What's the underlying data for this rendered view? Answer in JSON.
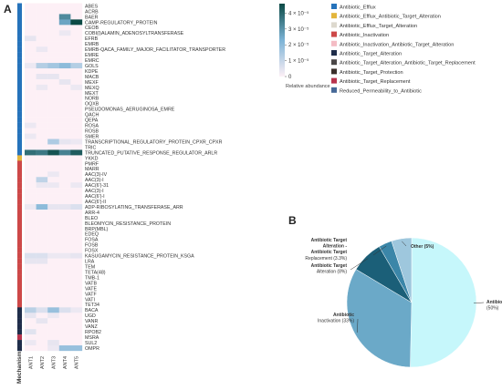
{
  "panel_a_letter": "A",
  "panel_b_letter": "B",
  "mechanism_axis_label": "Mechanism",
  "colorbar": {
    "title": "Relative abundance",
    "ticks": [
      {
        "v": 0,
        "label": "0"
      },
      {
        "v": 1e-05,
        "label": "1 × 10⁻⁵"
      },
      {
        "v": 2e-05,
        "label": "2 × 10⁻⁵"
      },
      {
        "v": 3e-05,
        "label": "3 × 10⁻⁵"
      },
      {
        "v": 4e-05,
        "label": "4 × 10⁻⁵"
      }
    ],
    "range": [
      0,
      4.6e-05
    ],
    "color_low": "#fdf0f6",
    "color_mid": "#7cb3d6",
    "color_high": "#0b4a45"
  },
  "legend": [
    {
      "label": "Antibiotic_Efflux",
      "color": "#2673bb"
    },
    {
      "label": "Antibiotic_Efflux_Antibiotic_Target_Alteration",
      "color": "#e3b53c"
    },
    {
      "label": "Antibiotic_Efflux_Target_Alteration",
      "color": "#ddd9ce"
    },
    {
      "label": "Antibiotic_Inactivation",
      "color": "#cd4848"
    },
    {
      "label": "Antibiotic_Inactivation_Antibiotic_Target_Alteration",
      "color": "#f4bcc4"
    },
    {
      "label": "Antibiotic_Target_Alteration",
      "color": "#1f2d4a"
    },
    {
      "label": "Antibiotic_Target_Alteration_Antibiotic_Target_Replacement",
      "color": "#4a4646"
    },
    {
      "label": "Antibiotic_Target_Protection",
      "color": "#3a2e2a"
    },
    {
      "label": "Antibiotic_Target_Replacement",
      "color": "#b8334c"
    },
    {
      "label": "Reduced_Permeability_to_Antibiotic",
      "color": "#466897"
    }
  ],
  "chart_data": [
    {
      "type": "heatmap",
      "columns": [
        "ANT1",
        "ANT2",
        "ANT3",
        "ANT4",
        "ANT5"
      ],
      "rows": [
        "ABES",
        "ACRB",
        "BAER",
        "CAMP-REGULATORY_PROTEIN",
        "CEOB",
        "COBI(I)ALAMIN_ADENOSYLTRANSFERASE",
        "EFRB",
        "EMRB",
        "EMRB-QACA_FAMILY_MAJOR_FACILITATOR_TRANSPORTER",
        "EMRE",
        "EMRC",
        "GOLS",
        "KDPE",
        "MACB",
        "MEXF",
        "MEXQ",
        "MEXT",
        "NORB",
        "OQXB",
        "PSEUDOMONAS_AERUGINOSA_EMRE",
        "QACH",
        "QEPA",
        "ROSA",
        "ROSB",
        "SMER",
        "TRANSCRIPTIONAL_REGULATORY_PROTEIN_CPXR_CPXR",
        "TRIC",
        "TRUNCATED_PUTATIVE_RESPONSE_REGULATOR_ARLR",
        "YKKD",
        "PMRF",
        "MARR",
        "AAC(3)-IV",
        "AAC(3)-I",
        "AAC(6')-31",
        "AAC(3)-I",
        "AAC(6')-I",
        "AAC(6')-II",
        "ADP-RIBOSYLATING_TRANSFERASE_ARR",
        "ARR-4",
        "BLEO",
        "BLEOMYCIN_RESISTANCE_PROTEIN",
        "BRP(MBL)",
        "EDEQ",
        "FOSA",
        "FOSB",
        "FOSX",
        "KASUGAMYCIN_RESISTANCE_PROTEIN_KSGA",
        "LRA",
        "TEM",
        "TETA(48)",
        "TMB-1",
        "VATB",
        "VATE",
        "VATF",
        "VATI",
        "TET34",
        "BACA",
        "UGD",
        "VANR",
        "VANZ",
        "RPOB2",
        "MSRA",
        "SUL2",
        "OMPR"
      ],
      "row_mechanisms": [
        0,
        0,
        0,
        0,
        0,
        0,
        0,
        0,
        0,
        0,
        0,
        0,
        0,
        0,
        0,
        0,
        0,
        0,
        0,
        0,
        0,
        0,
        0,
        0,
        0,
        0,
        0,
        0,
        1,
        3,
        3,
        3,
        3,
        3,
        3,
        3,
        3,
        3,
        3,
        3,
        3,
        3,
        3,
        3,
        3,
        3,
        3,
        3,
        3,
        3,
        3,
        3,
        3,
        3,
        3,
        3,
        5,
        5,
        5,
        5,
        5,
        8,
        5,
        5
      ],
      "values": [
        [
          0,
          0,
          0,
          0,
          0
        ],
        [
          0,
          0,
          0,
          0,
          0
        ],
        [
          0,
          0,
          0,
          3.2e-05,
          0
        ],
        [
          0,
          0,
          0,
          2.6e-05,
          4.6e-05
        ],
        [
          0,
          0,
          0,
          0,
          0
        ],
        [
          0,
          0,
          0,
          3e-06,
          0
        ],
        [
          4e-06,
          0,
          0,
          0,
          0
        ],
        [
          0,
          0,
          0,
          0,
          0
        ],
        [
          0,
          3e-06,
          0,
          0,
          0
        ],
        [
          0,
          0,
          0,
          0,
          0
        ],
        [
          0,
          0,
          0,
          0,
          0
        ],
        [
          3e-06,
          1.3e-05,
          1.6e-05,
          2e-05,
          1.3e-05
        ],
        [
          0,
          0,
          0,
          0,
          0
        ],
        [
          0,
          4e-06,
          4e-06,
          0,
          0
        ],
        [
          0,
          0,
          0,
          4e-06,
          0
        ],
        [
          0,
          3e-06,
          0,
          0,
          3e-06
        ],
        [
          0,
          0,
          0,
          0,
          0
        ],
        [
          0,
          0,
          0,
          0,
          0
        ],
        [
          0,
          0,
          0,
          0,
          0
        ],
        [
          0,
          0,
          0,
          0,
          0
        ],
        [
          0,
          0,
          0,
          0,
          0
        ],
        [
          0,
          0,
          0,
          0,
          0
        ],
        [
          3e-06,
          0,
          0,
          0,
          0
        ],
        [
          0,
          0,
          0,
          0,
          0
        ],
        [
          3e-06,
          0,
          0,
          0,
          0
        ],
        [
          0,
          0,
          1.4e-05,
          4e-06,
          3e-06
        ],
        [
          0,
          0,
          0,
          0,
          0
        ],
        [
          3.8e-05,
          3.6e-05,
          4.4e-05,
          3.4e-05,
          4.2e-05
        ],
        [
          0,
          0,
          0,
          0,
          0
        ],
        [
          0,
          0,
          0,
          0,
          0
        ],
        [
          0,
          0,
          0,
          0,
          0
        ],
        [
          0,
          0,
          3e-06,
          0,
          0
        ],
        [
          0,
          1.1e-05,
          0,
          0,
          0
        ],
        [
          0,
          3e-06,
          3e-06,
          0,
          3e-06
        ],
        [
          0,
          0,
          0,
          0,
          0
        ],
        [
          0,
          0,
          0,
          0,
          0
        ],
        [
          0,
          0,
          0,
          0,
          0
        ],
        [
          3e-06,
          2e-05,
          4e-06,
          4e-06,
          6e-06
        ],
        [
          0,
          0,
          0,
          0,
          0
        ],
        [
          0,
          0,
          0,
          0,
          0
        ],
        [
          0,
          0,
          0,
          0,
          0
        ],
        [
          0,
          0,
          0,
          0,
          0
        ],
        [
          0,
          0,
          0,
          0,
          0
        ],
        [
          0,
          0,
          0,
          0,
          0
        ],
        [
          0,
          0,
          0,
          0,
          0
        ],
        [
          0,
          0,
          0,
          0,
          0
        ],
        [
          6e-06,
          6e-06,
          3e-06,
          3e-06,
          4e-06
        ],
        [
          4e-06,
          4e-06,
          0,
          0,
          0
        ],
        [
          0,
          0,
          0,
          0,
          0
        ],
        [
          0,
          0,
          0,
          0,
          0
        ],
        [
          0,
          0,
          0,
          0,
          0
        ],
        [
          0,
          0,
          0,
          0,
          0
        ],
        [
          0,
          0,
          0,
          0,
          0
        ],
        [
          0,
          0,
          0,
          0,
          0
        ],
        [
          0,
          0,
          0,
          0,
          0
        ],
        [
          0,
          0,
          0,
          0,
          0
        ],
        [
          1.2e-05,
          6e-06,
          1.8e-05,
          6e-06,
          3e-06
        ],
        [
          4e-06,
          0,
          3e-06,
          0,
          0
        ],
        [
          0,
          4e-06,
          0,
          0,
          0
        ],
        [
          0,
          0,
          0,
          0,
          0
        ],
        [
          5e-06,
          0,
          0,
          0,
          0
        ],
        [
          0,
          0,
          0,
          0,
          0
        ],
        [
          3e-06,
          0,
          4e-06,
          0,
          0
        ],
        [
          0,
          0,
          3e-06,
          1.8e-05,
          1.8e-05
        ]
      ]
    },
    {
      "type": "pie",
      "slices": [
        {
          "label": "Antibiotic Efflux",
          "pct_label": "(50%)",
          "value": 50,
          "color": "#c6f7fb"
        },
        {
          "label": "Antibiotic Inactivation",
          "pct_label": "(33%)",
          "value": 33,
          "color": "#6ba9c8"
        },
        {
          "label": "Antibiotic Target Alteration",
          "pct_label": "(8%)",
          "value": 8,
          "color": "#1b5f78"
        },
        {
          "label": "Antibiotic Target Alteration - Antibiotic Target Replacement",
          "pct_label": "(3.3%)",
          "value": 3.3,
          "color": "#3b86a8"
        },
        {
          "label": "Other",
          "pct_label": "(5%)",
          "value": 5,
          "color": "#9ec7dd"
        }
      ]
    }
  ]
}
